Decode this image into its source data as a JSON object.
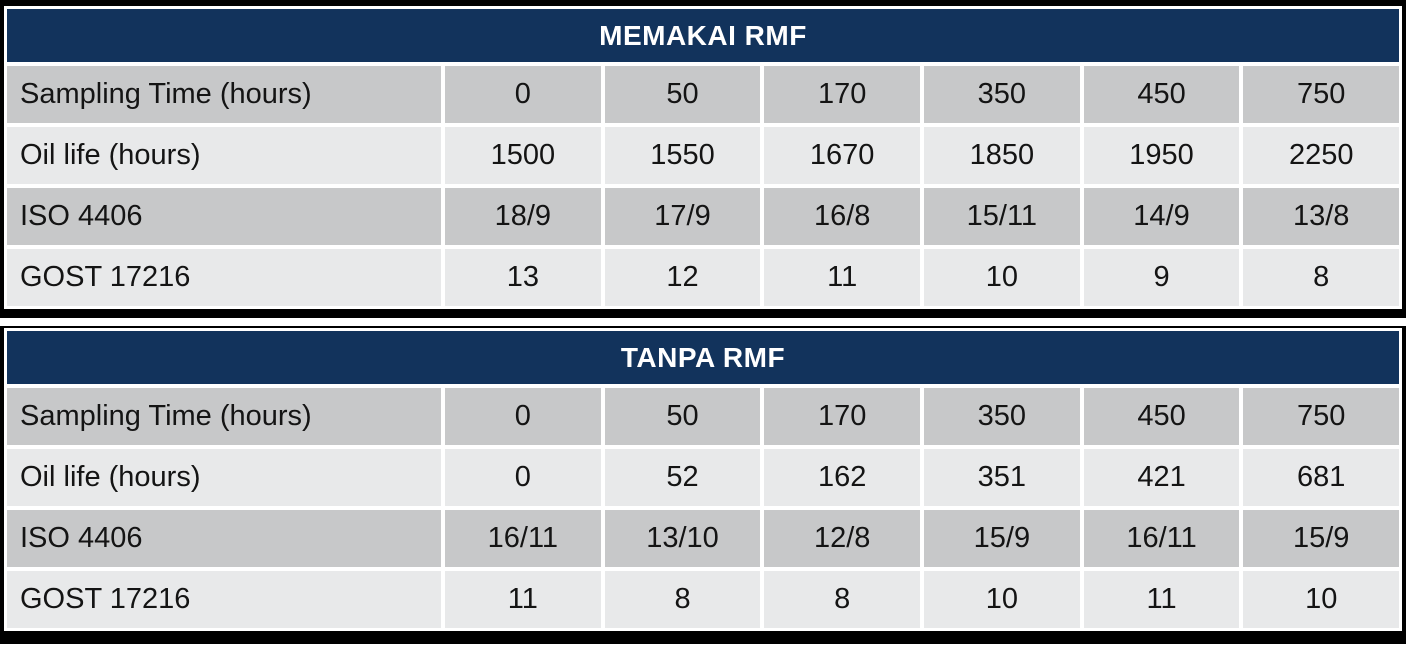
{
  "tables": [
    {
      "title": "MEMAKAI RMF",
      "rows": [
        {
          "label": "Sampling Time (hours)",
          "values": [
            "0",
            "50",
            "170",
            "350",
            "450",
            "750"
          ]
        },
        {
          "label": "Oil life (hours)",
          "values": [
            "1500",
            "1550",
            "1670",
            "1850",
            "1950",
            "2250"
          ]
        },
        {
          "label": "ISO 4406",
          "values": [
            "18/9",
            "17/9",
            "16/8",
            "15/11",
            "14/9",
            "13/8"
          ]
        },
        {
          "label": "GOST 17216",
          "values": [
            "13",
            "12",
            "11",
            "10",
            "9",
            "8"
          ]
        }
      ]
    },
    {
      "title": "TANPA RMF",
      "rows": [
        {
          "label": "Sampling Time (hours)",
          "values": [
            "0",
            "50",
            "170",
            "350",
            "450",
            "750"
          ]
        },
        {
          "label": "Oil life (hours)",
          "values": [
            "0",
            "52",
            "162",
            "351",
            "421",
            "681"
          ]
        },
        {
          "label": "ISO 4406",
          "values": [
            "16/11",
            "13/10",
            "12/8",
            "15/9",
            "16/11",
            "15/9"
          ]
        },
        {
          "label": "GOST 17216",
          "values": [
            "11",
            "8",
            "8",
            "10",
            "11",
            "10"
          ]
        }
      ]
    }
  ],
  "chart_data": [
    {
      "type": "table",
      "title": "MEMAKAI RMF",
      "row_labels": [
        "Sampling Time (hours)",
        "Oil life (hours)",
        "ISO 4406",
        "GOST 17216"
      ],
      "sampling_time_hours": [
        0,
        50,
        170,
        350,
        450,
        750
      ],
      "oil_life_hours": [
        1500,
        1550,
        1670,
        1850,
        1950,
        2250
      ],
      "iso_4406": [
        "18/9",
        "17/9",
        "16/8",
        "15/11",
        "14/9",
        "13/8"
      ],
      "gost_17216": [
        13,
        12,
        11,
        10,
        9,
        8
      ]
    },
    {
      "type": "table",
      "title": "TANPA RMF",
      "row_labels": [
        "Sampling Time (hours)",
        "Oil life (hours)",
        "ISO 4406",
        "GOST 17216"
      ],
      "sampling_time_hours": [
        0,
        50,
        170,
        350,
        450,
        750
      ],
      "oil_life_hours": [
        0,
        52,
        162,
        351,
        421,
        681
      ],
      "iso_4406": [
        "16/11",
        "13/10",
        "12/8",
        "15/9",
        "16/11",
        "15/9"
      ],
      "gost_17216": [
        11,
        8,
        8,
        10,
        11,
        10
      ]
    }
  ],
  "colors": {
    "header_bg": "#12335C",
    "header_text": "#FFFFFF",
    "row_band_dark": "#C7C8C9",
    "row_band_light": "#E8E9EA",
    "frame": "#000000",
    "cell_text": "#141414"
  }
}
